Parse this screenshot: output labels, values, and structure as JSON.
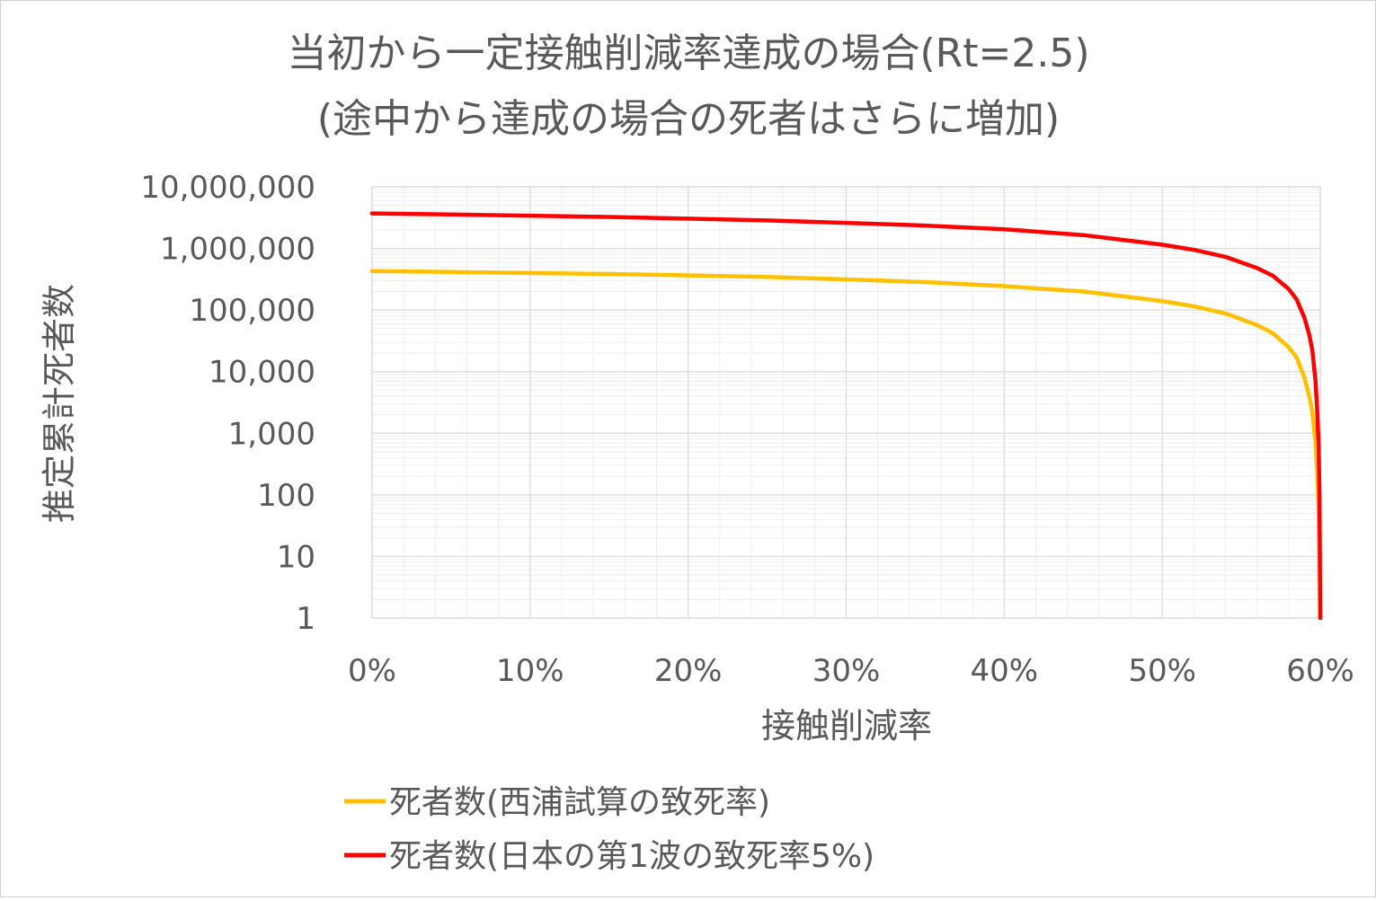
{
  "chart_data": {
    "type": "line",
    "title": "当初から一定接触削減率達成の場合(Rt=2.5)",
    "subtitle": "(途中から達成の場合の死者はさらに増加)",
    "xlabel": "接触削減率",
    "ylabel": "推定累計死者数",
    "x_scale": "linear",
    "y_scale": "log",
    "xlim": [
      0,
      60
    ],
    "ylim": [
      1,
      10000000
    ],
    "x_ticks": [
      "0%",
      "10%",
      "20%",
      "30%",
      "40%",
      "50%",
      "60%"
    ],
    "y_ticks": [
      "10,000,000",
      "1,000,000",
      "100,000",
      "10,000",
      "1,000",
      "100",
      "10",
      "1"
    ],
    "grid": true,
    "legend_position": "bottom",
    "series": [
      {
        "name": "死者数(西浦試算の致死率)",
        "color": "#FFC000",
        "x": [
          0,
          5,
          10,
          15,
          20,
          25,
          30,
          35,
          40,
          45,
          50,
          52,
          54,
          56,
          57,
          58,
          58.5,
          59,
          59.3,
          59.5,
          59.7,
          59.8,
          59.9,
          59.95,
          60
        ],
        "values": [
          430000,
          415000,
          400000,
          385000,
          365000,
          345000,
          315000,
          285000,
          245000,
          200000,
          140000,
          115000,
          88000,
          57000,
          42000,
          25000,
          17000,
          8000,
          4000,
          2200,
          700,
          250,
          60,
          10,
          1
        ]
      },
      {
        "name": "死者数(日本の第1波の致死率5%)",
        "color": "#FF0000",
        "x": [
          0,
          5,
          10,
          15,
          20,
          25,
          30,
          35,
          40,
          45,
          50,
          52,
          54,
          56,
          57,
          58,
          58.5,
          59,
          59.3,
          59.5,
          59.7,
          59.8,
          59.9,
          59.95,
          60
        ],
        "values": [
          3700000,
          3550000,
          3400000,
          3250000,
          3050000,
          2850000,
          2600000,
          2350000,
          2050000,
          1650000,
          1150000,
          950000,
          730000,
          480000,
          360000,
          220000,
          150000,
          75000,
          40000,
          22000,
          7000,
          2500,
          600,
          100,
          1
        ]
      }
    ]
  }
}
